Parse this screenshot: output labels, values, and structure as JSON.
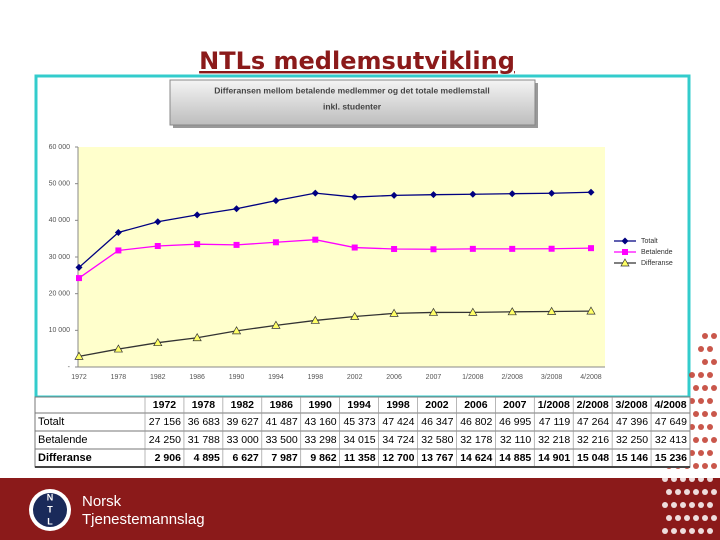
{
  "title": "NTLs medlemsutvikling",
  "chart_data": {
    "type": "line",
    "title": "Differansen mellom betalende medlemmer og det totale medlemstall",
    "subtitle": "inkl. studenter",
    "categories": [
      "1972",
      "1978",
      "1982",
      "1986",
      "1990",
      "1994",
      "1998",
      "2002",
      "2006",
      "2007",
      "1/2008",
      "2/2008",
      "3/2008",
      "4/2008"
    ],
    "series": [
      {
        "name": "Totalt",
        "color": "#000080",
        "marker": "diamond",
        "values": [
          27156,
          36683,
          39627,
          41487,
          43160,
          45373,
          47424,
          46347,
          46802,
          46995,
          47119,
          47264,
          47396,
          47649
        ],
        "value_labels": [
          "27 156",
          "36 683",
          "39 627",
          "41 487",
          "43 160",
          "45 373",
          "47 424",
          "46 347",
          "46 802",
          "46 995",
          "47 119",
          "47 264",
          "47 396",
          "47 649"
        ]
      },
      {
        "name": "Betalende",
        "color": "#ff00ff",
        "marker": "square",
        "values": [
          24250,
          31788,
          33000,
          33500,
          33298,
          34015,
          34724,
          32580,
          32178,
          32110,
          32218,
          32216,
          32250,
          32413
        ],
        "value_labels": [
          "24 250",
          "31 788",
          "33 000",
          "33 500",
          "33 298",
          "34 015",
          "34 724",
          "32 580",
          "32 178",
          "32 110",
          "32 218",
          "32 216",
          "32 250",
          "32 413"
        ]
      },
      {
        "name": "Differanse",
        "color": "#ffff66",
        "marker": "triangle",
        "values": [
          2906,
          4895,
          6627,
          7987,
          9862,
          11358,
          12700,
          13767,
          14624,
          14885,
          14901,
          15048,
          15146,
          15236
        ],
        "value_labels": [
          "2 906",
          "4 895",
          "6 627",
          "7 987",
          "9 862",
          "11 358",
          "12 700",
          "13 767",
          "14 624",
          "14 885",
          "14 901",
          "15 048",
          "15 146",
          "15 236"
        ]
      }
    ],
    "ylim": [
      0,
      60000
    ],
    "yticks": [
      {
        "value": 0,
        "label": "-"
      },
      {
        "value": 10000,
        "label": "10 000"
      },
      {
        "value": 20000,
        "label": "20 000"
      },
      {
        "value": 30000,
        "label": "30 000"
      },
      {
        "value": 40000,
        "label": "40 000"
      },
      {
        "value": 50000,
        "label": "50 000"
      },
      {
        "value": 60000,
        "label": "60 000"
      }
    ],
    "grid": false,
    "legend": "right",
    "plot_background": "#ffffcc"
  },
  "logo": {
    "emblem": [
      "N",
      "T",
      "L"
    ],
    "line1": "Norsk",
    "line2": "Tjenestemannslag"
  }
}
